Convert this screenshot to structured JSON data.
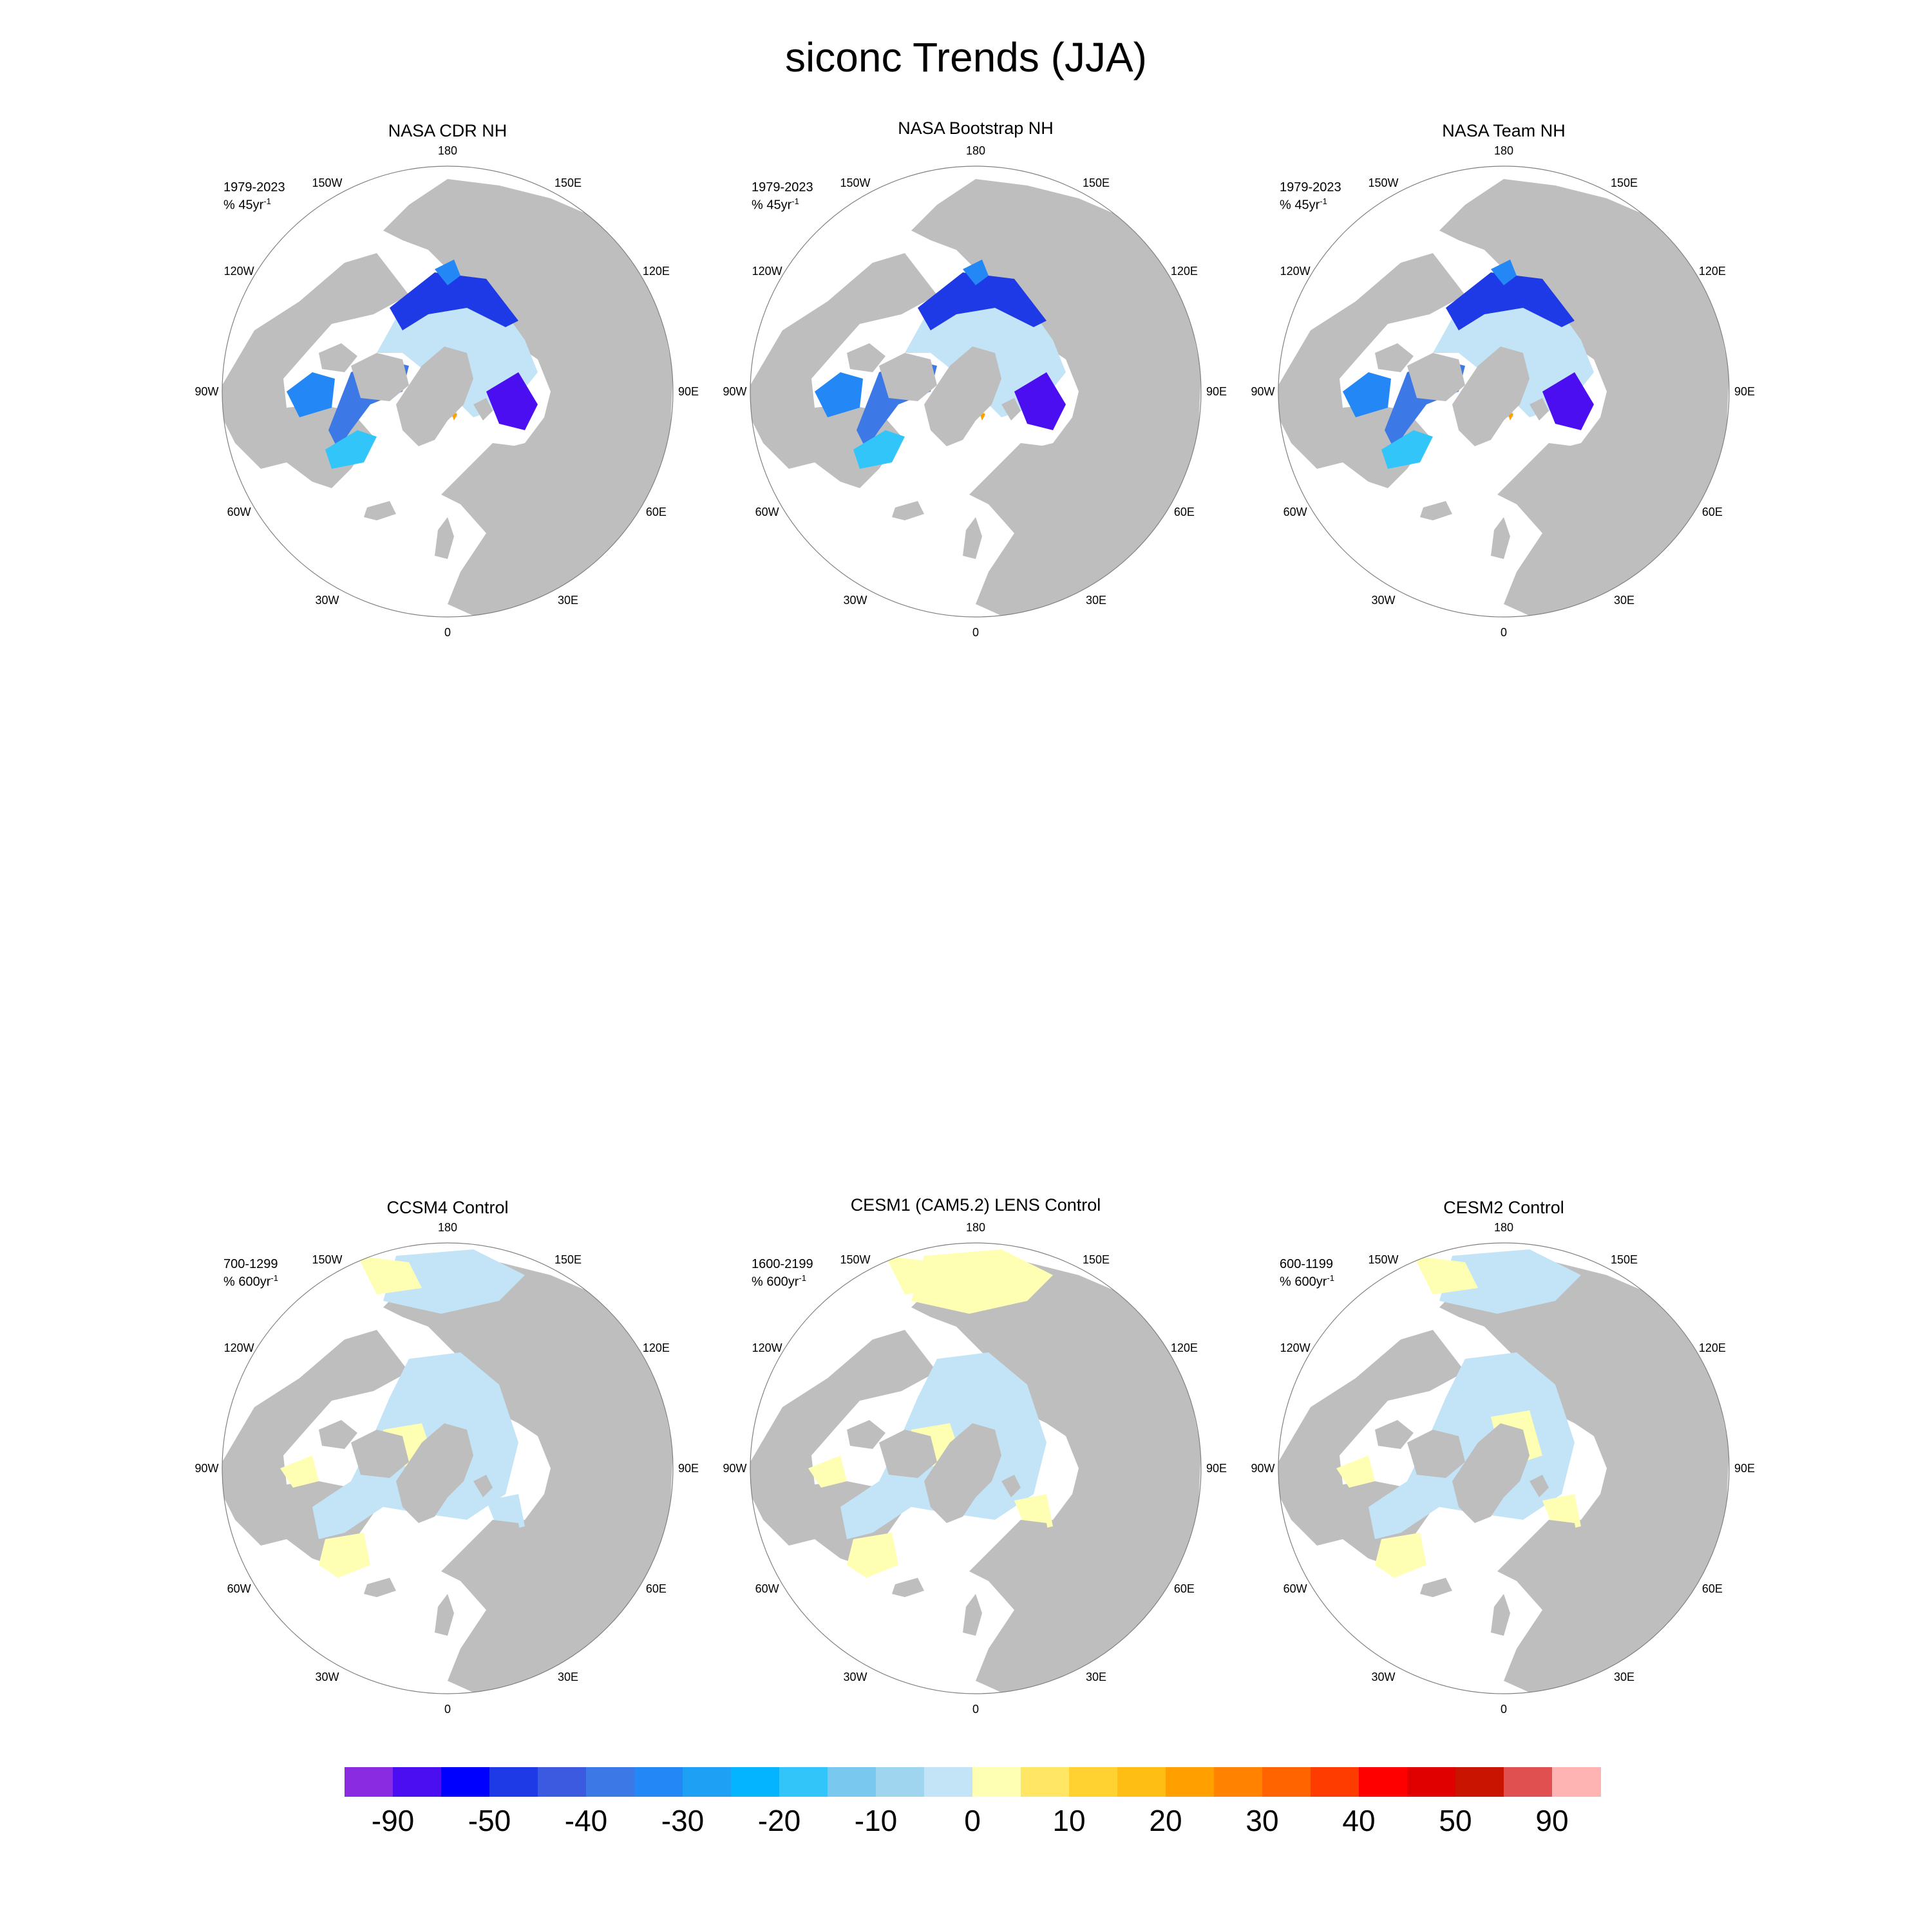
{
  "title": "siconc Trends (JJA)",
  "lon_labels": [
    "180",
    "150E",
    "120E",
    "90E",
    "60E",
    "30E",
    "0",
    "30W",
    "60W",
    "90W",
    "120W",
    "150W"
  ],
  "colors": {
    "land": "#bebebe",
    "ocean": "#ffffff",
    "border": "#808080"
  },
  "panels": [
    {
      "title": "NASA CDR NH",
      "period": "1979-2023",
      "units": "% 45yr",
      "units_exp": "-1",
      "kind": "obs",
      "variant": 0
    },
    {
      "title": "NASA Bootstrap NH",
      "period": "1979-2023",
      "units": "% 45yr",
      "units_exp": "-1",
      "kind": "obs",
      "variant": 1
    },
    {
      "title": "NASA Team NH",
      "period": "1979-2023",
      "units": "% 45yr",
      "units_exp": "-1",
      "kind": "obs",
      "variant": 2
    },
    {
      "title": "CCSM4 Control",
      "period": "700-1299",
      "units": "% 600yr",
      "units_exp": "-1",
      "kind": "model",
      "variant": 0
    },
    {
      "title": "CESM1 (CAM5.2) LENS Control",
      "period": "1600-2199",
      "units": "% 600yr",
      "units_exp": "-1",
      "kind": "model",
      "variant": 1
    },
    {
      "title": "CESM2 Control",
      "period": "600-1199",
      "units": "% 600yr",
      "units_exp": "-1",
      "kind": "model",
      "variant": 2
    }
  ],
  "colorbar": {
    "colors": [
      "#8a2be2",
      "#4b0ef0",
      "#0000ff",
      "#1e3ae6",
      "#3c5ae0",
      "#3c78e6",
      "#2388f5",
      "#1ea0f5",
      "#05b4ff",
      "#32c5fa",
      "#78c8f0",
      "#a0d5f0",
      "#c3e4f7",
      "#ffffb4",
      "#ffe664",
      "#ffd232",
      "#ffbe14",
      "#ffa000",
      "#ff8200",
      "#ff6400",
      "#ff3c00",
      "#ff0000",
      "#e10000",
      "#c81400",
      "#e15050",
      "#ffb4b4"
    ],
    "labels": [
      "-90",
      "-50",
      "-40",
      "-30",
      "-20",
      "-10",
      "0",
      "10",
      "20",
      "30",
      "40",
      "50",
      "90"
    ]
  }
}
